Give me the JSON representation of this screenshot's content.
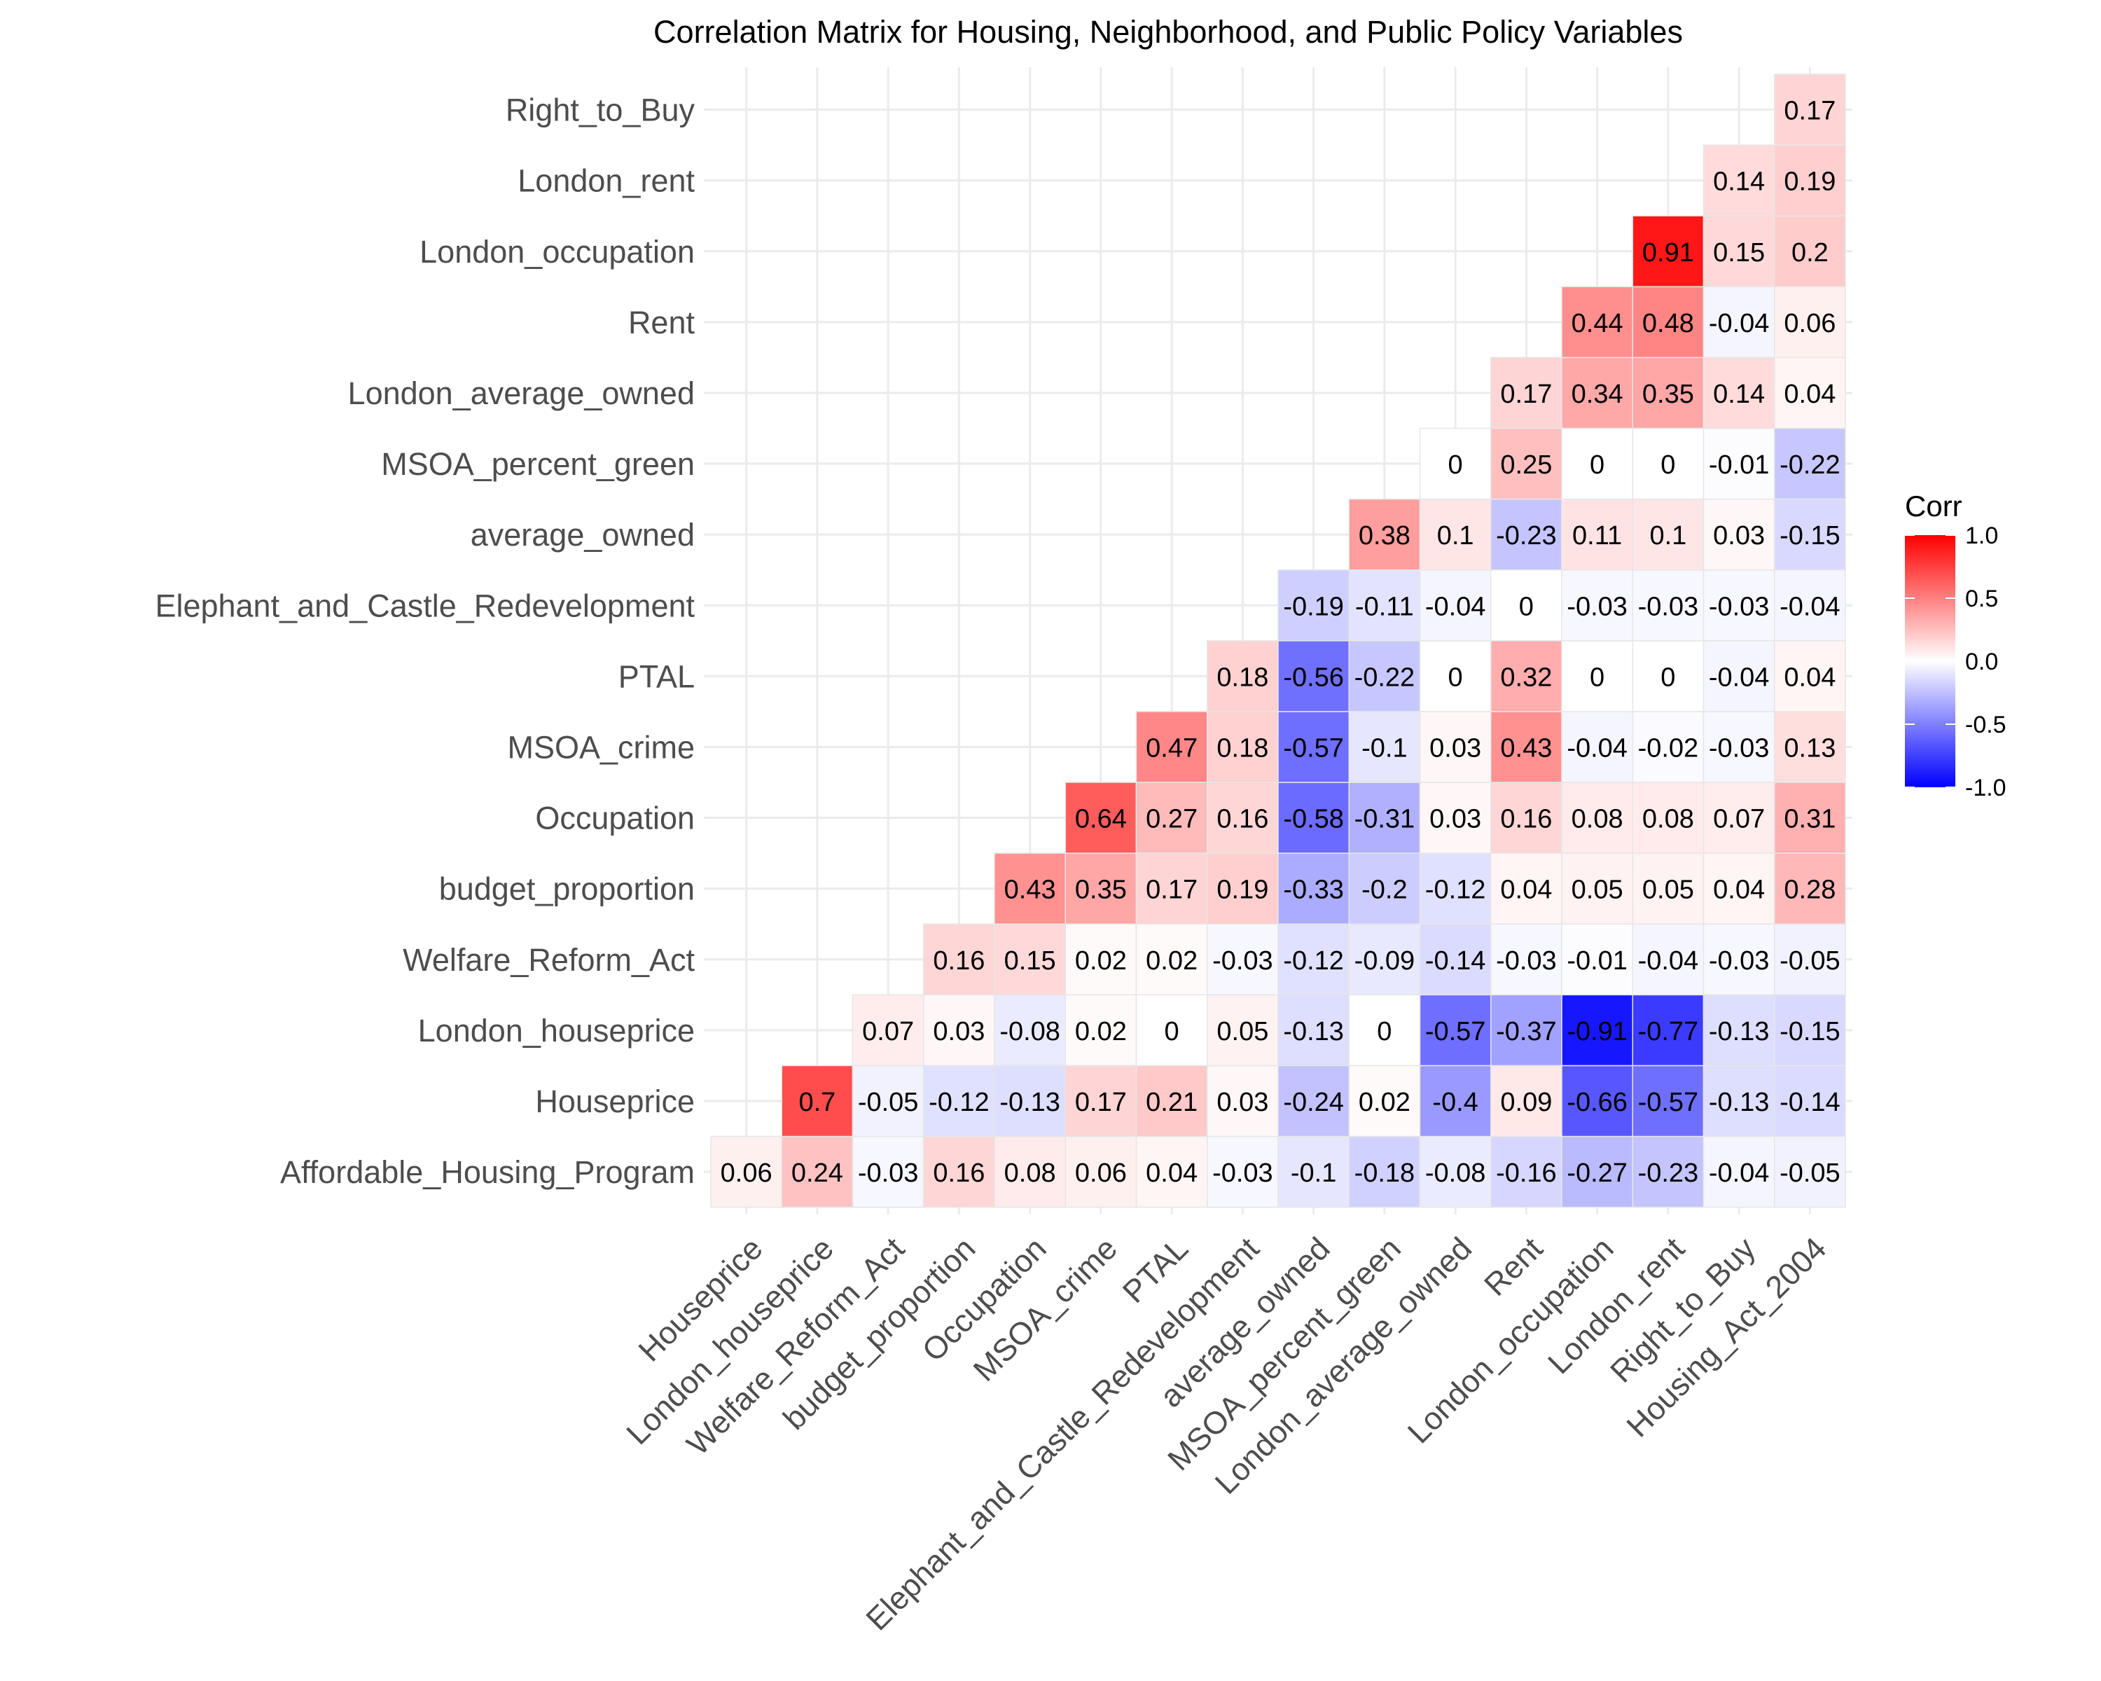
{
  "chart_data": {
    "type": "heatmap",
    "title": "Correlation Matrix for Housing, Neighborhood, and Public Policy Variables",
    "xlabel": "",
    "ylabel": "",
    "x_categories": [
      "Houseprice",
      "London_houseprice",
      "Welfare_Reform_Act",
      "budget_proportion",
      "Occupation",
      "MSOA_crime",
      "PTAL",
      "Elephant_and_Castle_Redevelopment",
      "average_owned",
      "MSOA_percent_green",
      "London_average_owned",
      "Rent",
      "London_occupation",
      "London_rent",
      "Right_to_Buy",
      "Housing_Act_2004"
    ],
    "y_categories": [
      "Affordable_Housing_Program",
      "Houseprice",
      "London_houseprice",
      "Welfare_Reform_Act",
      "budget_proportion",
      "Occupation",
      "MSOA_crime",
      "PTAL",
      "Elephant_and_Castle_Redevelopment",
      "average_owned",
      "MSOA_percent_green",
      "London_average_owned",
      "Rent",
      "London_occupation",
      "London_rent",
      "Right_to_Buy"
    ],
    "rows": [
      {
        "y": "Affordable_Housing_Program",
        "values": [
          0.06,
          0.24,
          -0.03,
          0.16,
          0.08,
          0.06,
          0.04,
          -0.03,
          -0.1,
          -0.18,
          -0.08,
          -0.16,
          -0.27,
          -0.23,
          -0.04,
          -0.05
        ]
      },
      {
        "y": "Houseprice",
        "values": [
          null,
          0.7,
          -0.05,
          -0.12,
          -0.13,
          0.17,
          0.21,
          0.03,
          -0.24,
          0.02,
          -0.4,
          0.09,
          -0.66,
          -0.57,
          -0.13,
          -0.14
        ]
      },
      {
        "y": "London_houseprice",
        "values": [
          null,
          null,
          0.07,
          0.03,
          -0.08,
          0.02,
          0,
          0.05,
          -0.13,
          0,
          -0.57,
          -0.37,
          -0.91,
          -0.77,
          -0.13,
          -0.15
        ]
      },
      {
        "y": "Welfare_Reform_Act",
        "values": [
          null,
          null,
          null,
          0.16,
          0.15,
          0.02,
          0.02,
          -0.03,
          -0.12,
          -0.09,
          -0.14,
          -0.03,
          -0.01,
          -0.04,
          -0.03,
          -0.05
        ]
      },
      {
        "y": "budget_proportion",
        "values": [
          null,
          null,
          null,
          null,
          0.43,
          0.35,
          0.17,
          0.19,
          -0.33,
          -0.2,
          -0.12,
          0.04,
          0.05,
          0.05,
          0.04,
          0.28
        ]
      },
      {
        "y": "Occupation",
        "values": [
          null,
          null,
          null,
          null,
          null,
          0.64,
          0.27,
          0.16,
          -0.58,
          -0.31,
          0.03,
          0.16,
          0.08,
          0.08,
          0.07,
          0.31
        ]
      },
      {
        "y": "MSOA_crime",
        "values": [
          null,
          null,
          null,
          null,
          null,
          null,
          0.47,
          0.18,
          -0.57,
          -0.1,
          0.03,
          0.43,
          -0.04,
          -0.02,
          -0.03,
          0.13
        ]
      },
      {
        "y": "PTAL",
        "values": [
          null,
          null,
          null,
          null,
          null,
          null,
          null,
          0.18,
          -0.56,
          -0.22,
          0,
          0.32,
          0,
          0,
          -0.04,
          0.04
        ]
      },
      {
        "y": "Elephant_and_Castle_Redevelopment",
        "values": [
          null,
          null,
          null,
          null,
          null,
          null,
          null,
          null,
          -0.19,
          -0.11,
          -0.04,
          0,
          -0.03,
          -0.03,
          -0.03,
          -0.04
        ]
      },
      {
        "y": "average_owned",
        "values": [
          null,
          null,
          null,
          null,
          null,
          null,
          null,
          null,
          null,
          0.38,
          0.1,
          -0.23,
          0.11,
          0.1,
          0.03,
          -0.15
        ]
      },
      {
        "y": "MSOA_percent_green",
        "values": [
          null,
          null,
          null,
          null,
          null,
          null,
          null,
          null,
          null,
          null,
          0,
          0.25,
          0,
          0,
          -0.01,
          -0.22
        ]
      },
      {
        "y": "London_average_owned",
        "values": [
          null,
          null,
          null,
          null,
          null,
          null,
          null,
          null,
          null,
          null,
          null,
          0.17,
          0.34,
          0.35,
          0.14,
          0.04
        ]
      },
      {
        "y": "Rent",
        "values": [
          null,
          null,
          null,
          null,
          null,
          null,
          null,
          null,
          null,
          null,
          null,
          null,
          0.44,
          0.48,
          -0.04,
          0.06
        ]
      },
      {
        "y": "London_occupation",
        "values": [
          null,
          null,
          null,
          null,
          null,
          null,
          null,
          null,
          null,
          null,
          null,
          null,
          null,
          0.91,
          0.15,
          0.2
        ]
      },
      {
        "y": "London_rent",
        "values": [
          null,
          null,
          null,
          null,
          null,
          null,
          null,
          null,
          null,
          null,
          null,
          null,
          null,
          null,
          0.14,
          0.19
        ]
      },
      {
        "y": "Right_to_Buy",
        "values": [
          null,
          null,
          null,
          null,
          null,
          null,
          null,
          null,
          null,
          null,
          null,
          null,
          null,
          null,
          null,
          0.17
        ]
      }
    ],
    "legend": {
      "title": "Corr",
      "position": "right",
      "ticks": [
        "1.0",
        "0.5",
        "0.0",
        "-0.5",
        "-1.0"
      ],
      "tick_values": [
        1.0,
        0.5,
        0.0,
        -0.5,
        -1.0
      ],
      "low_color": "#0000ff",
      "mid_color": "#ffffff",
      "high_color": "#ff0000",
      "range": [
        -1,
        1
      ]
    },
    "grid": true
  }
}
